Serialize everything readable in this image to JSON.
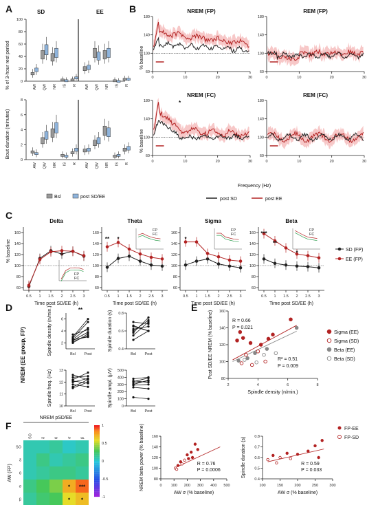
{
  "panels": {
    "A": {
      "letter": "A",
      "col1": "SD",
      "col2": "EE",
      "ylabel_top": "% of 3-hour rest period",
      "ylabel_bottom": "Bout duration (minutes)",
      "states": [
        "AW",
        "QW",
        "NR",
        "IS",
        "R"
      ],
      "legend": [
        "Bsl",
        "post SD/EE"
      ],
      "yticks_top": [
        "0",
        "20",
        "40",
        "60",
        "80",
        "100"
      ],
      "yticks_bottom": [
        "0",
        "2",
        "4",
        "6",
        "8"
      ]
    },
    "B": {
      "letter": "B",
      "titles": [
        "NREM (FP)",
        "REM (FP)",
        "NREM (FC)",
        "REM (FC)"
      ],
      "ylabel": "% baseline",
      "xlabel": "Frequency (Hz)",
      "legend": [
        "post SD",
        "post EE"
      ],
      "yticks": [
        "60",
        "100",
        "140",
        "180"
      ],
      "xticks": [
        "0",
        "10",
        "20",
        "30"
      ],
      "star": "*"
    },
    "C": {
      "letter": "C",
      "titles": [
        "Delta",
        "Theta",
        "Sigma",
        "Beta"
      ],
      "ylabel": "% baseline",
      "xlabel": "Time post SD/EE (h)",
      "xticks": [
        "0.5",
        "1",
        "1.5",
        "2",
        "2.5",
        "3"
      ],
      "yticks": [
        "60",
        "80",
        "100",
        "120",
        "140",
        "160"
      ],
      "legend": [
        "SD (FP)",
        "EE (FP)"
      ],
      "inset_legend": [
        "FP",
        "FC"
      ],
      "stars": {
        "theta": [
          "**",
          "*"
        ],
        "sigma": [
          "*"
        ],
        "beta": [
          "***",
          "**",
          "*"
        ]
      }
    },
    "D": {
      "letter": "D",
      "ylabel": "NREM (EE group, FP)",
      "plots": [
        {
          "ylabel": "Spindle density (n/min.)",
          "yticks": [
            "2",
            "4",
            "6"
          ],
          "star": "**"
        },
        {
          "ylabel": "Spindle duration (s)",
          "yticks": [
            "0.4",
            "0.6",
            "0.8"
          ],
          "star": ""
        },
        {
          "ylabel": "Spindle freq. (Hz)",
          "yticks": [
            "10",
            "11",
            "12",
            "13"
          ],
          "star": ""
        },
        {
          "ylabel": "Spindle ampl. (µV)",
          "yticks": [
            "0",
            "100",
            "200",
            "300",
            "400",
            "500"
          ],
          "star": ""
        }
      ],
      "xticks": [
        "Bsl",
        "Post"
      ]
    },
    "E": {
      "letter": "E",
      "ylabel": "Post SD/EE NREM (% baseline)",
      "xlabel": "Spindle density (n/min.)",
      "stats1": [
        "R = 0.66",
        "P = 0.021"
      ],
      "stats2": [
        "R² = 0.51",
        "P = 0.009"
      ],
      "legend": [
        "Sigma (EE)",
        "Sigma (SD)",
        "Beta (EE)",
        "Beta (SD)"
      ],
      "xticks": [
        "2",
        "4",
        "6",
        "8"
      ],
      "yticks": [
        "80",
        "100",
        "120",
        "140",
        "160"
      ]
    },
    "F": {
      "letter": "F",
      "heat_title": "NREM pSD/EE",
      "heat_ylabel": "AW (FP)",
      "rows": [
        "SO",
        "δ",
        "θ",
        "σ",
        "β"
      ],
      "cols": [
        "SO",
        "δ",
        "θ",
        "σ",
        "β"
      ],
      "scale": [
        "1",
        "0.5",
        "0",
        "-0.5",
        "-1"
      ],
      "stars": [
        "*",
        "***",
        "*",
        "*"
      ],
      "scatter1": {
        "ylabel": "NREM beta power (% baseline)",
        "xlabel": "AW σ (% baseline)",
        "stats": [
          "R = 0.76",
          "P = 0.0006"
        ],
        "xticks": [
          "0",
          "100",
          "200",
          "300",
          "400",
          "500"
        ],
        "yticks": [
          "80",
          "100",
          "120",
          "140",
          "160"
        ]
      },
      "scatter2": {
        "ylabel": "Spindle duration (s)",
        "xlabel": "AW σ (% baseline)",
        "stats": [
          "R = 0.59",
          "P = 0.033"
        ],
        "xticks": [
          "100",
          "150",
          "200",
          "250",
          "300"
        ],
        "yticks": [
          "0.4",
          "0.5",
          "0.6",
          "0.7",
          "0.8"
        ]
      },
      "legend": [
        "FP-EE",
        "FP-SD"
      ]
    }
  },
  "colors": {
    "red": "#b22222",
    "black": "#222222",
    "grey": "#888888",
    "blue": "#8fb4dc"
  },
  "chart_data": [
    {
      "type": "line",
      "panel": "C-Delta",
      "x": [
        0.5,
        1,
        1.5,
        2,
        2.5,
        3
      ],
      "series": [
        {
          "name": "SD (FP)",
          "values": [
            62,
            113,
            127,
            121,
            126,
            117
          ]
        },
        {
          "name": "EE (FP)",
          "values": [
            64,
            111,
            125,
            127,
            126,
            118
          ]
        }
      ]
    },
    {
      "type": "line",
      "panel": "C-Theta",
      "x": [
        0.5,
        1,
        1.5,
        2,
        2.5,
        3
      ],
      "series": [
        {
          "name": "SD (FP)",
          "values": [
            97,
            113,
            117,
            108,
            101,
            99
          ]
        },
        {
          "name": "EE (FP)",
          "values": [
            134,
            142,
            130,
            121,
            115,
            112
          ]
        }
      ]
    },
    {
      "type": "line",
      "panel": "C-Sigma",
      "x": [
        0.5,
        1,
        1.5,
        2,
        2.5,
        3
      ],
      "series": [
        {
          "name": "SD (FP)",
          "values": [
            101,
            108,
            112,
            103,
            99,
            96
          ]
        },
        {
          "name": "EE (FP)",
          "values": [
            143,
            143,
            122,
            116,
            110,
            108
          ]
        }
      ]
    },
    {
      "type": "line",
      "panel": "C-Beta",
      "x": [
        0.5,
        1,
        1.5,
        2,
        2.5,
        3
      ],
      "series": [
        {
          "name": "SD (FP)",
          "values": [
            112,
            104,
            101,
            99,
            98,
            96
          ]
        },
        {
          "name": "EE (FP)",
          "values": [
            158,
            145,
            132,
            121,
            118,
            114
          ]
        }
      ]
    }
  ]
}
